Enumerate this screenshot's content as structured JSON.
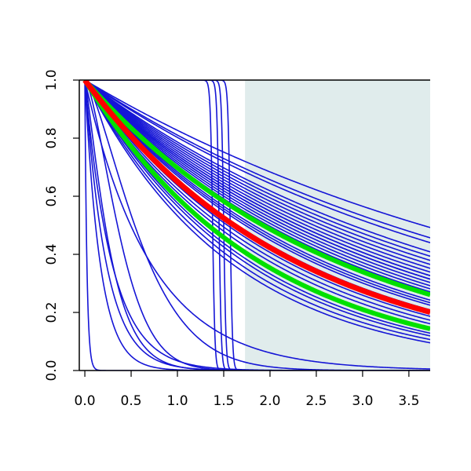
{
  "chart_data": {
    "type": "line",
    "title": "",
    "xlabel": "",
    "ylabel": "",
    "xlim": [
      -0.06,
      3.73
    ],
    "ylim": [
      0.0,
      1.0
    ],
    "x_ticks": [
      "0.0",
      "0.5",
      "1.0",
      "1.5",
      "2.0",
      "2.5",
      "3.0",
      "3.5"
    ],
    "y_ticks": [
      "0.0",
      "0.2",
      "0.4",
      "0.6",
      "0.8",
      "1.0"
    ],
    "grid": false,
    "legend": "none",
    "shaded_region": {
      "x_start": 1.73,
      "x_end": 3.73,
      "color": "#e0ecec"
    },
    "colors": {
      "samples": "#1515d6",
      "mean": "#ff0000",
      "band": "#00e000",
      "axis": "#000000"
    },
    "rate_curves": {
      "note_units": "S(t) = exp(-rate * t) survival curves sampled from posterior",
      "rates": [
        0.19,
        0.21,
        0.22,
        0.24,
        0.25,
        0.26,
        0.27,
        0.28,
        0.29,
        0.3,
        0.3,
        0.31,
        0.31,
        0.32,
        0.33,
        0.34,
        0.35,
        0.36,
        0.38,
        0.39,
        0.4,
        0.42,
        0.43,
        0.45,
        0.47,
        0.49,
        0.52,
        0.55,
        0.57,
        0.6,
        0.63,
        1.4,
        3.4,
        4.3,
        6.0,
        45.0
      ]
    },
    "weibull_curves": {
      "scales": [
        0.3,
        0.45,
        0.7
      ],
      "shapes": [
        1.2,
        1.5,
        1.4
      ]
    },
    "step_curves": {
      "drop_points": [
        1.38,
        1.45,
        1.5,
        1.57
      ],
      "steepness": 80
    },
    "mean_curve": {
      "rate": 0.43
    },
    "band_curves": {
      "rates": [
        0.36,
        0.52
      ]
    }
  }
}
